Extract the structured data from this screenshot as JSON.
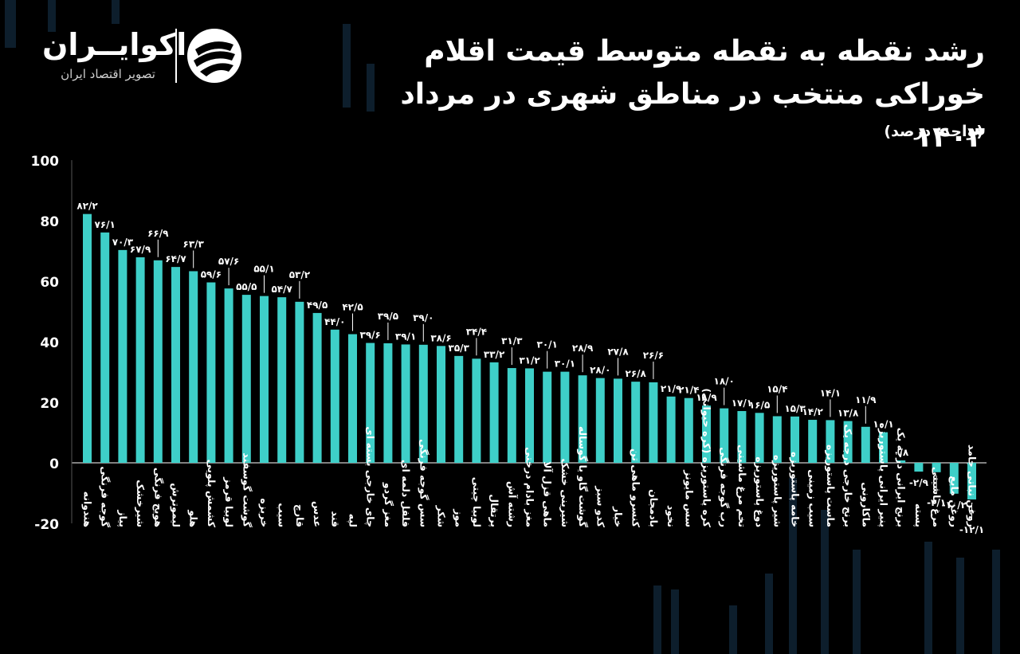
{
  "brand": {
    "name": "اکوایــران",
    "tagline": "تصویر اقتصاد ایران",
    "logo_icon": "ecoiran-swirl-icon"
  },
  "title": "رشد نقطه به نقطه متوسط قیمت اقلام خوراکی منتخب در مناطق شهری در مرداد ۱۴۰۳",
  "unit": "(واحد: درصد)",
  "colors": {
    "bar": "#3ecfc8",
    "background": "#000000",
    "text": "#ffffff",
    "decor": "#0d1e2c"
  },
  "chart_data": {
    "type": "bar",
    "ylim": [
      -20,
      100
    ],
    "yticks": [
      100,
      80,
      60,
      40,
      20,
      0,
      -20
    ],
    "ytick_labels": [
      "100",
      "80",
      "60",
      "40",
      "20",
      "0",
      "-20"
    ],
    "grid": false,
    "categories": [
      "هندوانه",
      "گوجه فرنگی",
      "پیاز",
      "شیرخشک",
      "هویج فرنگی",
      "لیموترش",
      "هلو",
      "کشمش پلویی",
      "لوبیا قرمز",
      "گوشت گوسفند",
      "خربزه",
      "سیب",
      "قارچ",
      "عدس",
      "قند",
      "لپه",
      "چای خارجی بسته ای",
      "مغز گردو",
      "فلفل دلمه ای",
      "سس گوجه فرنگی",
      "شکر",
      "موز",
      "لوبیا چیتی",
      "پرتقال",
      "رشته آش",
      "مغز بادام درختی",
      "ماهی قزل آلا",
      "شیرینی خشک",
      "گوشت گاو یا گوساله",
      "کدو سبز",
      "خیار",
      "کنسرو ماهی تن",
      "بادمجان",
      "نخود",
      "سس مایونز",
      "کره پاستوریزه (کره حیوانی)",
      "رب گوجه فرنگی",
      "تخم مرغ ماشینی",
      "دوغ پاستوریزه",
      "شیر پاستوریزه",
      "خامه پاستوریزه",
      "سیب زمینی",
      "ماست پاستوریزه",
      "برنج خارجی درجه یک",
      "ماکارونی",
      "پنیر ایرانی پاستوریزه",
      "برنج ایرانی درجه یک",
      "پسته",
      "مرغ ماشینی",
      "روغن مایع",
      "روغن نباتی جامد"
    ],
    "values": [
      82.2,
      76.1,
      70.3,
      67.9,
      66.9,
      64.7,
      63.3,
      59.6,
      57.6,
      55.5,
      55.1,
      54.7,
      53.2,
      49.5,
      44.0,
      42.5,
      39.6,
      39.5,
      39.1,
      39.0,
      38.6,
      35.3,
      34.4,
      33.2,
      31.3,
      31.2,
      30.1,
      30.1,
      28.9,
      28.0,
      27.8,
      26.8,
      26.6,
      21.9,
      21.4,
      18.9,
      18.0,
      17.1,
      16.5,
      15.4,
      15.3,
      14.2,
      14.1,
      13.8,
      11.9,
      10.1,
      0.8,
      -2.9,
      -3.1,
      -10.2,
      -12.1
    ],
    "value_labels": [
      "۸۲/۲",
      "۷۶/۱",
      "۷۰/۳",
      "۶۷/۹",
      "۶۶/۹",
      "۶۴/۷",
      "۶۳/۳",
      "۵۹/۶",
      "۵۷/۶",
      "۵۵/۵",
      "۵۵/۱",
      "۵۴/۷",
      "۵۳/۲",
      "۴۹/۵",
      "۴۴/۰",
      "۴۲/۵",
      "۳۹/۶",
      "۳۹/۵",
      "۳۹/۱",
      "۳۹/۰",
      "۳۸/۶",
      "۳۵/۳",
      "۳۴/۴",
      "۳۳/۲",
      "۳۱/۳",
      "۳۱/۲",
      "۳۰/۱",
      "۳۰/۱",
      "۲۸/۹",
      "۲۸/۰",
      "۲۷/۸",
      "۲۶/۸",
      "۲۶/۶",
      "۲۱/۹",
      "۲۱/۴",
      "۱۸/۹",
      "۱۸/۰",
      "۱۷/۱",
      "۱۶/۵",
      "۱۵/۴",
      "۱۵/۳",
      "۱۴/۲",
      "۱۴/۱",
      "۱۳/۸",
      "۱۱/۹",
      "۱۰/۱",
      "۰/۸",
      "-۲/۹",
      "-۳/۱",
      "-۱۰/۲",
      "-۱۲/۱"
    ],
    "label_leader": [
      false,
      false,
      false,
      false,
      true,
      false,
      true,
      false,
      true,
      false,
      true,
      false,
      true,
      false,
      false,
      true,
      false,
      true,
      false,
      true,
      false,
      false,
      true,
      false,
      true,
      false,
      true,
      false,
      true,
      false,
      true,
      false,
      true,
      false,
      false,
      false,
      true,
      false,
      false,
      true,
      false,
      false,
      true,
      false,
      true,
      false,
      false,
      false,
      true,
      false,
      true
    ]
  }
}
